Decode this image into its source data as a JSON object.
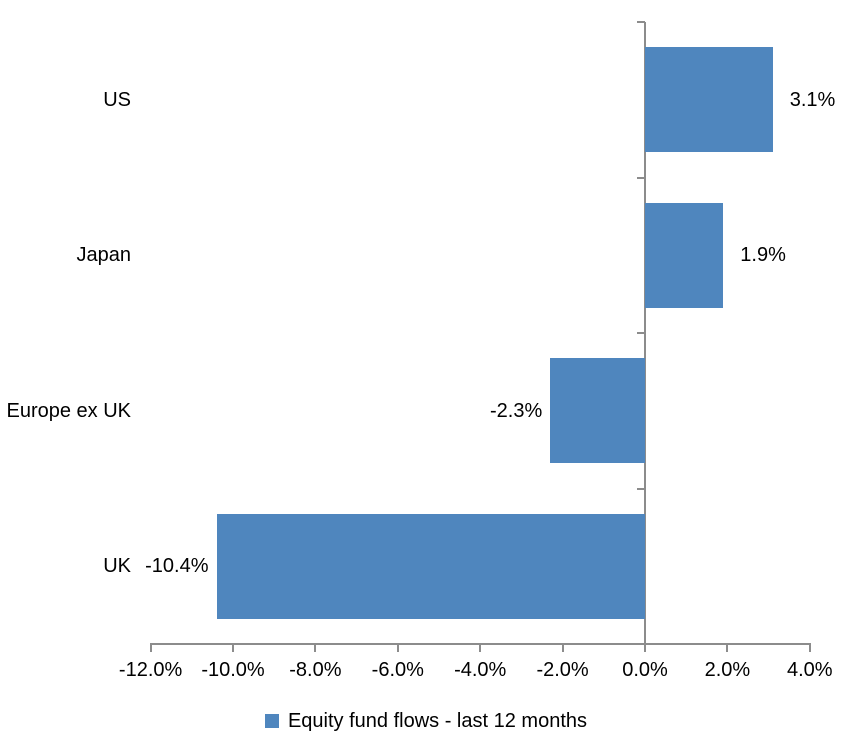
{
  "chart_data": {
    "type": "bar",
    "orientation": "horizontal",
    "title": "",
    "categories": [
      "US",
      "Japan",
      "Europe ex UK",
      "UK"
    ],
    "series": [
      {
        "name": "Equity fund flows - last 12 months",
        "values": [
          3.1,
          1.9,
          -2.3,
          -10.4
        ]
      }
    ],
    "data_labels": [
      "3.1%",
      "1.9%",
      "-2.3%",
      "-10.4%"
    ],
    "x_axis": {
      "min": -12,
      "max": 4,
      "tick_step": 2,
      "ticks": [
        -12,
        -10,
        -8,
        -6,
        -4,
        -2,
        0,
        2,
        4
      ],
      "tick_labels": [
        "-12.0%",
        "-10.0%",
        "-8.0%",
        "-6.0%",
        "-4.0%",
        "-2.0%",
        "0.0%",
        "2.0%",
        "4.0%"
      ],
      "unit": "%"
    },
    "y_axis": {
      "category_boundaries": 5,
      "crosses_at": 0
    },
    "legend": {
      "position": "bottom",
      "entries": [
        {
          "label": "Equity fund flows - last 12 months",
          "marker": "square",
          "color": "#4F86BE"
        }
      ]
    },
    "colors": {
      "bar": "#4F86BE",
      "axis": "#8C8C8C",
      "text": "#000000",
      "background": "#FFFFFF"
    },
    "grid": false
  }
}
